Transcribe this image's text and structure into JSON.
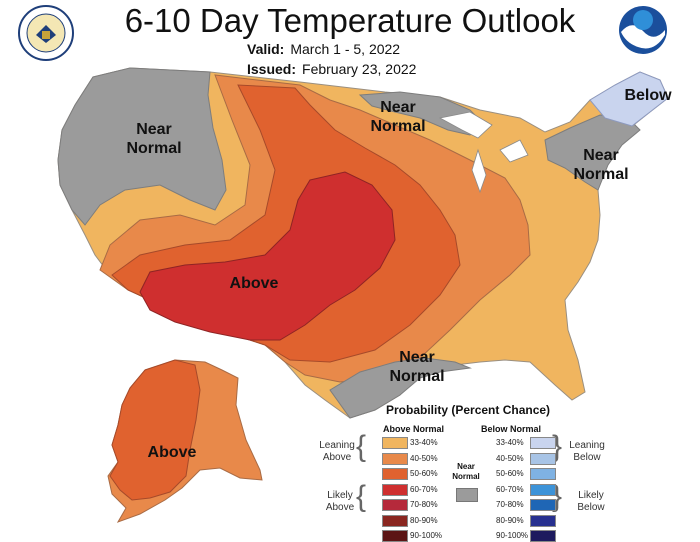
{
  "title": "6-10 Day Temperature Outlook",
  "valid": {
    "label": "Valid:",
    "value": "March 1 - 5, 2022"
  },
  "issued": {
    "label": "Issued:",
    "value": "February 23, 2022"
  },
  "map_labels": {
    "near_normal_west": "Near Normal",
    "near_normal_north": "Near Normal",
    "below_ne": "Below",
    "near_normal_ne": "Near Normal",
    "above_sw": "Above",
    "near_normal_tx": "Near Normal",
    "above_ak": "Above"
  },
  "legend": {
    "title": "Probability (Percent Chance)",
    "above_head": "Above Normal",
    "below_head": "Below Normal",
    "near_normal": "Near Normal",
    "leaning_above": "Leaning Above",
    "likely_above": "Likely Above",
    "leaning_below": "Leaning Below",
    "likely_below": "Likely Below",
    "ranges": [
      "33-40%",
      "40-50%",
      "50-60%",
      "60-70%",
      "70-80%",
      "80-90%",
      "90-100%"
    ],
    "above_colors": [
      "#f0b55f",
      "#e8894a",
      "#e0622f",
      "#cf2f2f",
      "#b5293b",
      "#8a2620",
      "#5c1515"
    ],
    "below_colors": [
      "#c9d4ee",
      "#a8c4e6",
      "#7fb2e3",
      "#3d93d8",
      "#1f66b5",
      "#27308f",
      "#1d1a5e"
    ],
    "near_color": "#9b9b9b"
  }
}
